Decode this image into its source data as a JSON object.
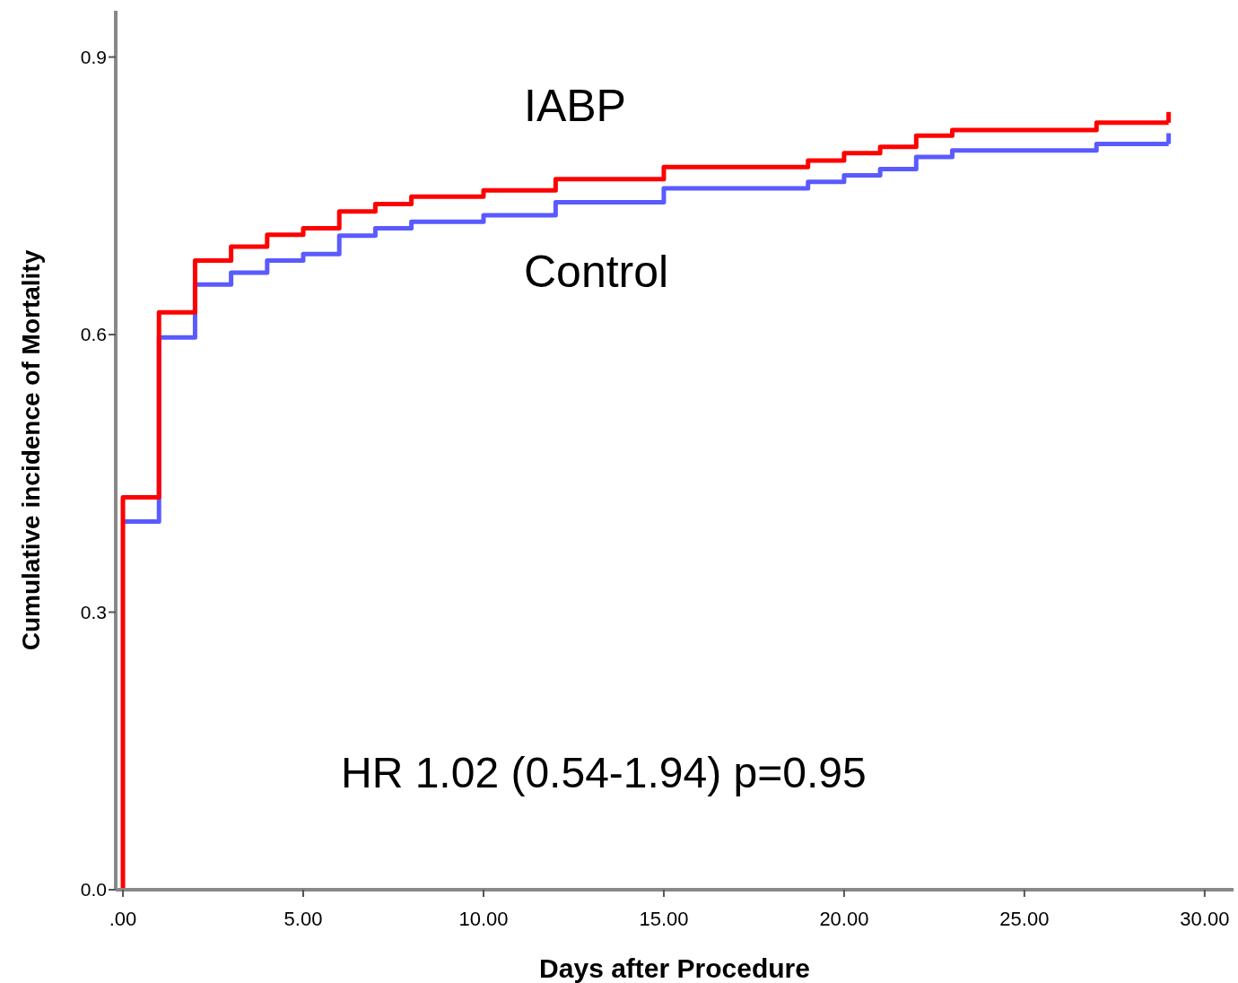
{
  "chart_data": {
    "type": "step",
    "xlabel": "Days after Procedure",
    "ylabel": "Cumulative incidence of Mortality",
    "xlim": [
      -0.2,
      30.8
    ],
    "ylim": [
      0,
      0.95
    ],
    "xticks": [
      {
        "value": 0,
        "label": ".00"
      },
      {
        "value": 5,
        "label": "5.00"
      },
      {
        "value": 10,
        "label": "10.00"
      },
      {
        "value": 15,
        "label": "15.00"
      },
      {
        "value": 20,
        "label": "20.00"
      },
      {
        "value": 25,
        "label": "25.00"
      },
      {
        "value": 30,
        "label": "30.00"
      }
    ],
    "yticks": [
      {
        "value": 0,
        "label": "0.0"
      },
      {
        "value": 0.3,
        "label": "0.3"
      },
      {
        "value": 0.6,
        "label": "0.6"
      },
      {
        "value": 0.9,
        "label": "0.9"
      }
    ],
    "grid": false,
    "series": [
      {
        "name": "Control",
        "color": "#5a5aff",
        "x": [
          0,
          1,
          2,
          3,
          4,
          5,
          6,
          7,
          8,
          10,
          12,
          15,
          19,
          20,
          21,
          22,
          23,
          27,
          29
        ],
        "values": [
          0.398,
          0.597,
          0.654,
          0.667,
          0.68,
          0.687,
          0.707,
          0.715,
          0.722,
          0.729,
          0.743,
          0.758,
          0.765,
          0.772,
          0.779,
          0.792,
          0.799,
          0.806,
          0.806
        ]
      },
      {
        "name": "IABP",
        "color": "#ff0000",
        "x": [
          0,
          0,
          1,
          2,
          3,
          4,
          5,
          6,
          7,
          8,
          10,
          12,
          15,
          19,
          20,
          21,
          22,
          23,
          27,
          29
        ],
        "values": [
          0,
          0.424,
          0.624,
          0.68,
          0.695,
          0.708,
          0.715,
          0.733,
          0.741,
          0.749,
          0.756,
          0.768,
          0.781,
          0.788,
          0.796,
          0.803,
          0.815,
          0.821,
          0.829,
          0.829
        ]
      }
    ],
    "annotations": [
      "HR 1.02 (0.54-1.94) p=0.95"
    ]
  }
}
